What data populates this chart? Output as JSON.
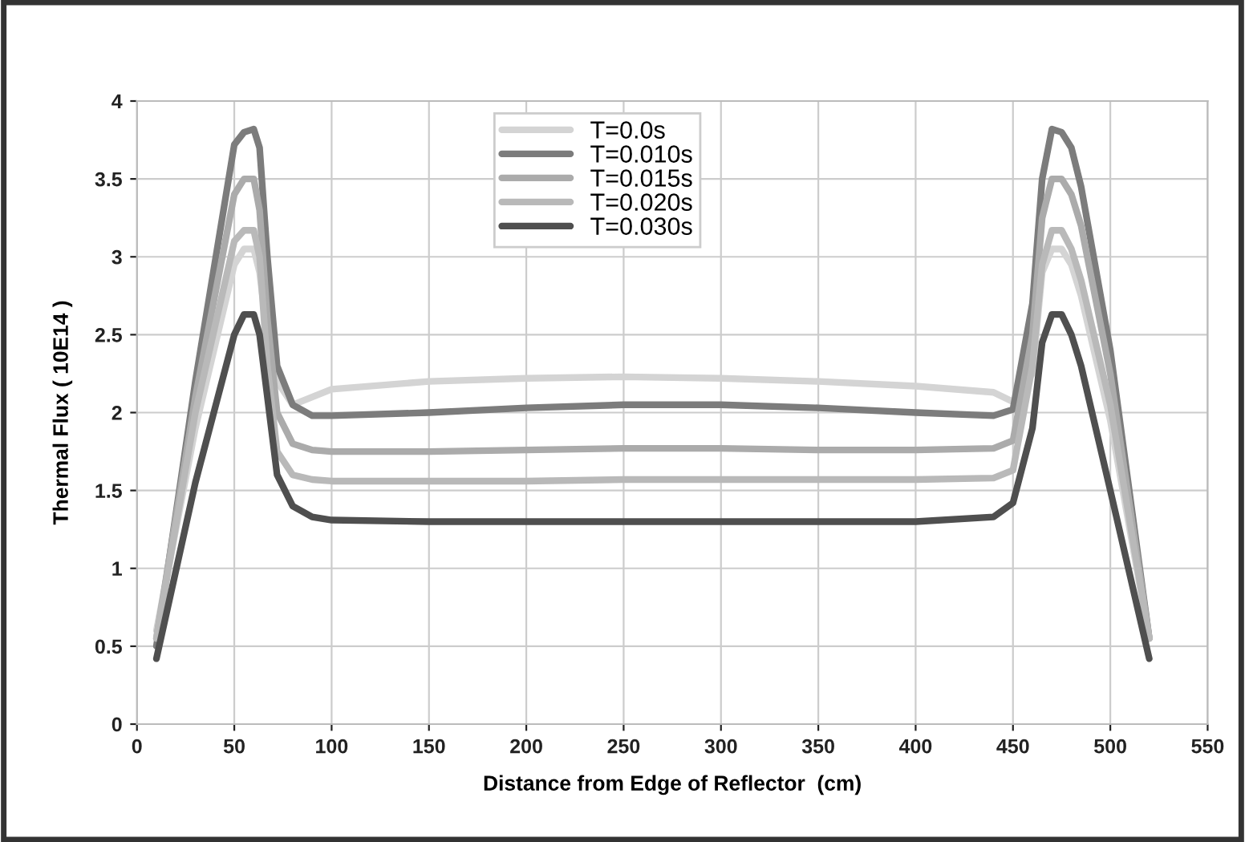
{
  "chart_data": {
    "type": "line",
    "xlabel": "Distance from Edge of Reflector  (cm)",
    "ylabel": "Thermal Flux ( 10E14 )",
    "x": [
      10,
      30,
      50,
      55,
      60,
      63,
      67,
      72,
      80,
      90,
      100,
      150,
      200,
      250,
      300,
      350,
      400,
      440,
      450,
      460,
      465,
      470,
      475,
      480,
      485,
      500,
      520
    ],
    "series": [
      {
        "name": "T=0.0s",
        "color": "#d4d4d4",
        "values": [
          0.6,
          1.9,
          2.95,
          3.05,
          3.05,
          2.9,
          2.5,
          2.2,
          2.05,
          2.1,
          2.15,
          2.2,
          2.22,
          2.23,
          2.22,
          2.2,
          2.17,
          2.13,
          2.07,
          2.25,
          2.9,
          3.05,
          3.05,
          2.95,
          2.75,
          1.95,
          0.55
        ]
      },
      {
        "name": "T=0.010s",
        "color": "#7c7c7c",
        "values": [
          0.5,
          2.2,
          3.72,
          3.8,
          3.82,
          3.7,
          3.0,
          2.3,
          2.05,
          1.98,
          1.98,
          2.0,
          2.03,
          2.05,
          2.05,
          2.03,
          2.0,
          1.98,
          2.02,
          2.7,
          3.5,
          3.82,
          3.8,
          3.7,
          3.45,
          2.4,
          0.55
        ]
      },
      {
        "name": "T=0.015s",
        "color": "#ababab",
        "values": [
          0.55,
          2.1,
          3.4,
          3.5,
          3.5,
          3.3,
          2.6,
          2.0,
          1.8,
          1.76,
          1.75,
          1.75,
          1.76,
          1.77,
          1.77,
          1.76,
          1.76,
          1.77,
          1.82,
          2.5,
          3.25,
          3.5,
          3.5,
          3.4,
          3.2,
          2.25,
          0.55
        ]
      },
      {
        "name": "T=0.020s",
        "color": "#b9b9b9",
        "values": [
          0.55,
          2.0,
          3.1,
          3.17,
          3.17,
          3.0,
          2.3,
          1.75,
          1.6,
          1.57,
          1.56,
          1.56,
          1.56,
          1.57,
          1.57,
          1.57,
          1.57,
          1.58,
          1.63,
          2.3,
          2.95,
          3.17,
          3.17,
          3.05,
          2.85,
          2.05,
          0.55
        ]
      },
      {
        "name": "T=0.030s",
        "color": "#4f4f4f",
        "values": [
          0.42,
          1.55,
          2.5,
          2.63,
          2.63,
          2.5,
          2.1,
          1.6,
          1.4,
          1.33,
          1.31,
          1.3,
          1.3,
          1.3,
          1.3,
          1.3,
          1.3,
          1.33,
          1.42,
          1.9,
          2.45,
          2.63,
          2.63,
          2.5,
          2.3,
          1.5,
          0.42
        ]
      }
    ],
    "xlim": [
      0,
      550
    ],
    "xticks": [
      0,
      50,
      100,
      150,
      200,
      250,
      300,
      350,
      400,
      450,
      500,
      550
    ],
    "ylim": [
      0,
      4
    ],
    "yticks": [
      0,
      0.5,
      1,
      1.5,
      2,
      2.5,
      3,
      3.5,
      4
    ],
    "grid": true,
    "legend": "top",
    "marker": "none",
    "line_style": "solid"
  }
}
